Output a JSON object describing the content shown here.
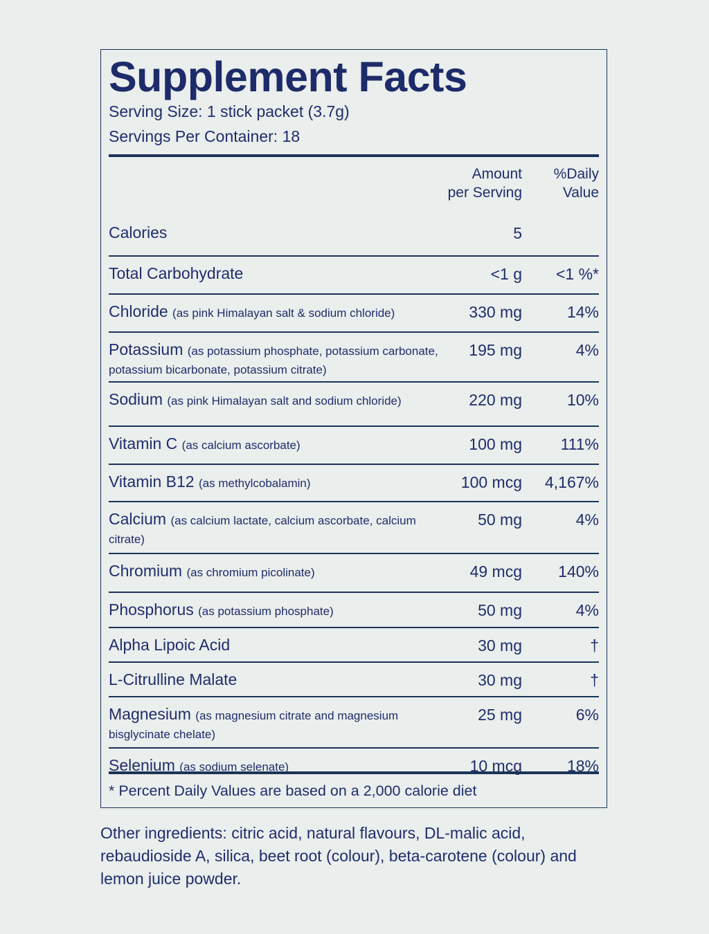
{
  "title": "Supplement Facts",
  "serving_size": "Serving Size: 1 stick packet (3.7g)",
  "servings_per_container": "Servings Per Container: 18",
  "columns": {
    "amount_1": "Amount",
    "amount_2": "per Serving",
    "dv_1": "%Daily",
    "dv_2": "Value"
  },
  "rows": [
    {
      "name": "Calories",
      "note": "",
      "amount": "5",
      "dv": ""
    },
    {
      "name": "Total Carbohydrate",
      "note": "",
      "amount": "<1 g",
      "dv": "<1 %*"
    },
    {
      "name": "Chloride",
      "note": "(as pink Himalayan salt & sodium chloride)",
      "amount": "330 mg",
      "dv": "14%"
    },
    {
      "name": "Potassium",
      "note": "(as potassium phosphate, potassium carbonate, potassium bicarbonate, potassium citrate)",
      "amount": "195 mg",
      "dv": "4%"
    },
    {
      "name": "Sodium",
      "note": "(as pink Himalayan salt and sodium chloride)",
      "amount": "220 mg",
      "dv": "10%"
    },
    {
      "name": "Vitamin C",
      "note": "(as calcium ascorbate)",
      "amount": "100 mg",
      "dv": "111%"
    },
    {
      "name": "Vitamin B12",
      "note": "(as methylcobalamin)",
      "amount": "100 mcg",
      "dv": "4,167%"
    },
    {
      "name": "Calcium",
      "note": "(as calcium lactate, calcium ascorbate, calcium citrate)",
      "amount": "50 mg",
      "dv": "4%"
    },
    {
      "name": "Chromium",
      "note": "(as chromium picolinate)",
      "amount": "49 mcg",
      "dv": "140%"
    },
    {
      "name": "Phosphorus",
      "note": "(as potassium phosphate)",
      "amount": "50 mg",
      "dv": "4%"
    },
    {
      "name": "Alpha Lipoic Acid",
      "note": "",
      "amount": "30 mg",
      "dv": "†"
    },
    {
      "name": "L-Citrulline Malate",
      "note": "",
      "amount": "30 mg",
      "dv": "†"
    },
    {
      "name": "Magnesium",
      "note": "(as magnesium citrate and magnesium bisglycinate chelate)",
      "amount": "25 mg",
      "dv": "6%"
    },
    {
      "name": "Selenium",
      "note": "(as sodium selenate)",
      "amount": "10 mcg",
      "dv": "18%"
    }
  ],
  "footnote": "* Percent Daily Values are based on a 2,000 calorie diet",
  "other_ingredients": "Other ingredients: citric acid, natural flavours, DL-malic acid, rebaudioside A, silica, beet root (colour), beta-carotene (colour) and lemon juice powder.",
  "colors": {
    "background": "#eaeeec",
    "text": "#1f2d6b",
    "rule": "#1a3358"
  }
}
